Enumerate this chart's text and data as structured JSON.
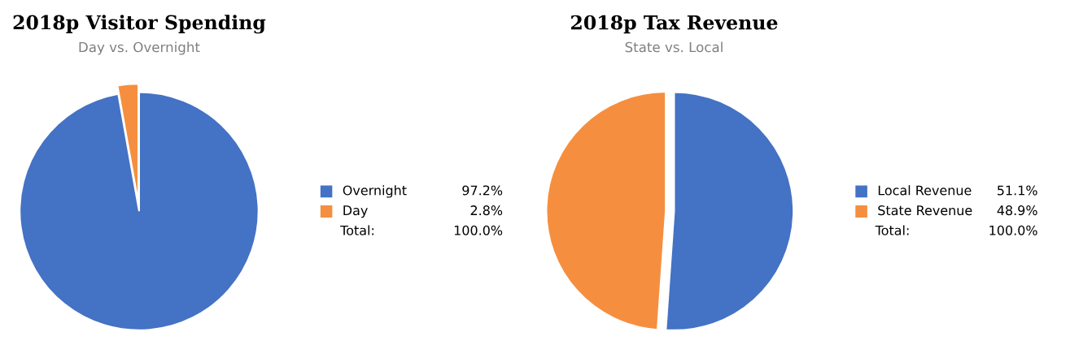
{
  "chart_data": [
    {
      "type": "pie",
      "title": "2018p Visitor Spending",
      "subtitle": "Day vs. Overnight",
      "categories": [
        "Overnight",
        "Day"
      ],
      "values": [
        97.2,
        2.8
      ],
      "value_labels": [
        "97.2%",
        "2.8%"
      ],
      "colors": [
        "#4472c4",
        "#f58f3f"
      ],
      "legend": "right",
      "annotations": [
        "Total:",
        "100.0%"
      ]
    },
    {
      "type": "pie",
      "title": "2018p Tax Revenue",
      "subtitle": "State vs. Local",
      "categories": [
        "Local Revenue",
        "State Revenue"
      ],
      "values": [
        51.1,
        48.9
      ],
      "value_labels": [
        "51.1%",
        "48.9%"
      ],
      "colors": [
        "#4472c4",
        "#f58f3f"
      ],
      "legend": "right",
      "annotations": [
        "Total:",
        "100.0%"
      ]
    }
  ]
}
